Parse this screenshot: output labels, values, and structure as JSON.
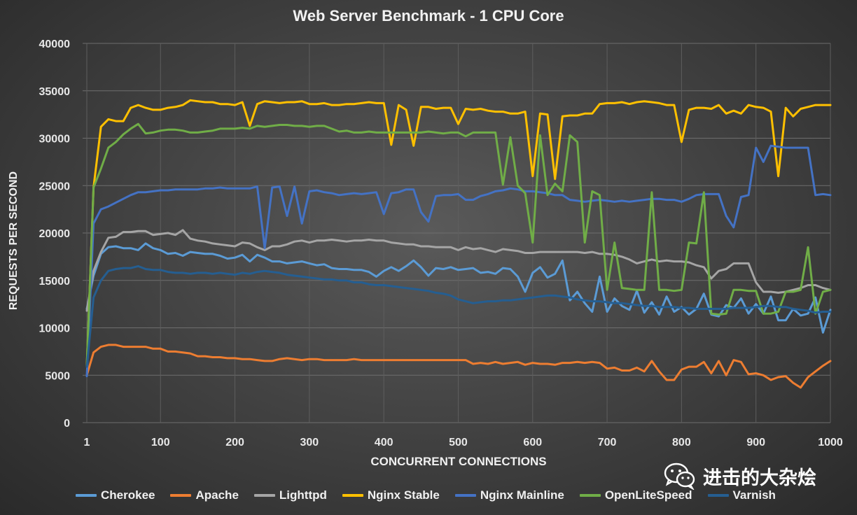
{
  "chart_data": {
    "type": "line",
    "title": "Web Server Benchmark - 1 CPU Core",
    "xlabel": "CONCURRENT CONNECTIONS",
    "ylabel": "REQUESTS PER SECOND",
    "xlim": [
      1,
      1000
    ],
    "ylim": [
      0,
      40000
    ],
    "x_ticks": [
      "1",
      "100",
      "200",
      "300",
      "400",
      "500",
      "600",
      "700",
      "800",
      "900",
      "1000"
    ],
    "y_ticks": [
      "0",
      "5000",
      "10000",
      "15000",
      "20000",
      "25000",
      "30000",
      "35000",
      "40000"
    ],
    "x": [
      1,
      10,
      20,
      30,
      40,
      50,
      60,
      70,
      80,
      90,
      100,
      110,
      120,
      130,
      140,
      150,
      160,
      170,
      180,
      190,
      200,
      210,
      220,
      230,
      240,
      250,
      260,
      270,
      280,
      290,
      300,
      310,
      320,
      330,
      340,
      350,
      360,
      370,
      380,
      390,
      400,
      410,
      420,
      430,
      440,
      450,
      460,
      470,
      480,
      490,
      500,
      510,
      520,
      530,
      540,
      550,
      560,
      570,
      580,
      590,
      600,
      610,
      620,
      630,
      640,
      650,
      660,
      670,
      680,
      690,
      700,
      710,
      720,
      730,
      740,
      750,
      760,
      770,
      780,
      790,
      800,
      810,
      820,
      830,
      840,
      850,
      860,
      870,
      880,
      890,
      900,
      910,
      920,
      930,
      940,
      950,
      960,
      970,
      980,
      990,
      1000
    ],
    "series": [
      {
        "name": "Cherokee",
        "color": "#5b9bd5",
        "values": [
          12000,
          15500,
          17800,
          18500,
          18600,
          18400,
          18400,
          18200,
          18900,
          18400,
          18200,
          17800,
          17900,
          17600,
          18000,
          17900,
          17800,
          17800,
          17600,
          17300,
          17400,
          17700,
          17000,
          17700,
          17400,
          17000,
          17000,
          16800,
          16900,
          17000,
          16800,
          16600,
          16700,
          16300,
          16200,
          16200,
          16100,
          16100,
          15900,
          15400,
          16000,
          16400,
          16000,
          16500,
          17100,
          16400,
          15500,
          16300,
          16200,
          16400,
          16100,
          16200,
          16300,
          15800,
          15900,
          15700,
          16300,
          16200,
          15400,
          13800,
          15800,
          16400,
          15300,
          15700,
          17100,
          12900,
          13800,
          12600,
          11700,
          15400,
          11700,
          13100,
          12300,
          11900,
          13900,
          11600,
          12700,
          11400,
          13300,
          11700,
          12200,
          11400,
          12000,
          13600,
          11400,
          11200,
          12400,
          12100,
          13100,
          11500,
          12500,
          11500,
          13300,
          10800,
          10800,
          12000,
          11300,
          11500,
          13200,
          9500,
          11900
        ]
      },
      {
        "name": "Apache",
        "color": "#ed7d31",
        "values": [
          5000,
          7400,
          8000,
          8200,
          8200,
          8000,
          8000,
          8000,
          8000,
          7800,
          7800,
          7500,
          7500,
          7400,
          7300,
          7000,
          7000,
          6900,
          6900,
          6800,
          6800,
          6700,
          6700,
          6600,
          6500,
          6500,
          6700,
          6800,
          6700,
          6600,
          6700,
          6700,
          6600,
          6600,
          6600,
          6600,
          6700,
          6600,
          6600,
          6600,
          6600,
          6600,
          6600,
          6600,
          6600,
          6600,
          6600,
          6600,
          6600,
          6600,
          6600,
          6600,
          6200,
          6300,
          6200,
          6400,
          6200,
          6300,
          6400,
          6100,
          6300,
          6200,
          6200,
          6100,
          6300,
          6300,
          6400,
          6300,
          6400,
          6300,
          5700,
          5800,
          5500,
          5500,
          5800,
          5400,
          6500,
          5400,
          4500,
          4500,
          5600,
          5900,
          5900,
          6400,
          5200,
          6500,
          5000,
          6600,
          6400,
          5100,
          5200,
          5000,
          4500,
          4800,
          4900,
          4200,
          3700,
          4800,
          5400,
          6000,
          6500
        ]
      },
      {
        "name": "Lighttpd",
        "color": "#a5a5a5",
        "values": [
          11800,
          16000,
          18000,
          19500,
          19600,
          20100,
          20100,
          20200,
          20200,
          19800,
          19900,
          20000,
          19800,
          20300,
          19400,
          19200,
          19100,
          18900,
          18800,
          18700,
          18600,
          19000,
          18900,
          18500,
          18200,
          18600,
          18600,
          18800,
          19100,
          19200,
          19000,
          19200,
          19200,
          19300,
          19200,
          19100,
          19200,
          19200,
          19300,
          19200,
          19200,
          19000,
          18900,
          18800,
          18800,
          18600,
          18600,
          18500,
          18500,
          18500,
          18200,
          18500,
          18300,
          18400,
          18200,
          18000,
          18300,
          18200,
          18100,
          17900,
          17900,
          18000,
          18000,
          18000,
          18000,
          18000,
          18000,
          17900,
          18000,
          17800,
          17800,
          17700,
          17500,
          17200,
          16800,
          17000,
          17200,
          17000,
          17100,
          17000,
          17000,
          16900,
          16600,
          16400,
          15200,
          16000,
          16200,
          16800,
          16800,
          16800,
          14800,
          13800,
          13800,
          13700,
          13800,
          14000,
          14200,
          14500,
          14500,
          14200,
          14000
        ]
      },
      {
        "name": "Nginx Stable",
        "color": "#ffc000",
        "values": [
          6000,
          24800,
          31200,
          32000,
          31800,
          31800,
          33200,
          33500,
          33200,
          33000,
          33000,
          33200,
          33300,
          33500,
          34000,
          33900,
          33800,
          33800,
          33600,
          33600,
          33500,
          33800,
          31300,
          33600,
          33900,
          33800,
          33700,
          33800,
          33800,
          33900,
          33600,
          33600,
          33700,
          33500,
          33500,
          33600,
          33600,
          33700,
          33800,
          33700,
          33700,
          29300,
          33500,
          33000,
          29200,
          33300,
          33300,
          33100,
          33200,
          33200,
          31500,
          33100,
          33000,
          33100,
          32900,
          32800,
          32800,
          32600,
          32600,
          32800,
          26000,
          32600,
          32500,
          25700,
          32300,
          32400,
          32400,
          32600,
          32600,
          33600,
          33700,
          33700,
          33800,
          33600,
          33800,
          33900,
          33800,
          33700,
          33500,
          33500,
          29600,
          33000,
          33200,
          33200,
          33100,
          33500,
          32600,
          32900,
          32600,
          33500,
          33300,
          33200,
          32800,
          26000,
          33200,
          32300,
          33100,
          33300,
          33500,
          33500,
          33500
        ]
      },
      {
        "name": "Nginx Mainline",
        "color": "#4472c4",
        "values": [
          4900,
          21000,
          22500,
          22800,
          23200,
          23600,
          24000,
          24300,
          24300,
          24400,
          24500,
          24500,
          24600,
          24600,
          24600,
          24600,
          24700,
          24700,
          24800,
          24700,
          24700,
          24700,
          24700,
          24900,
          18400,
          24800,
          24900,
          21800,
          24900,
          21000,
          24400,
          24500,
          24300,
          24200,
          24000,
          24100,
          24200,
          24100,
          24200,
          24300,
          22000,
          24200,
          24300,
          24600,
          24600,
          22200,
          21200,
          23900,
          24000,
          24000,
          24100,
          23500,
          23500,
          23900,
          24100,
          24400,
          24500,
          24700,
          24600,
          24400,
          24400,
          24300,
          24200,
          24000,
          24000,
          23500,
          23400,
          23300,
          23400,
          23500,
          23400,
          23300,
          23400,
          23300,
          23400,
          23500,
          23600,
          23600,
          23500,
          23500,
          23300,
          23600,
          24000,
          24100,
          24100,
          24100,
          21800,
          20600,
          23800,
          24000,
          29000,
          27500,
          29200,
          29100,
          29000,
          29000,
          29000,
          29000,
          24000,
          24100,
          24000
        ]
      },
      {
        "name": "OpenLiteSpeed",
        "color": "#70ad47",
        "values": [
          6000,
          24800,
          26800,
          29000,
          29600,
          30400,
          31000,
          31500,
          30500,
          30600,
          30800,
          30900,
          30900,
          30800,
          30600,
          30600,
          30700,
          30800,
          31000,
          31000,
          31000,
          31100,
          31000,
          31300,
          31200,
          31300,
          31400,
          31400,
          31300,
          31300,
          31200,
          31300,
          31300,
          31000,
          30700,
          30800,
          30600,
          30600,
          30700,
          30600,
          30600,
          30600,
          30600,
          30600,
          30600,
          30600,
          30700,
          30600,
          30500,
          30600,
          30600,
          30200,
          30600,
          30600,
          30600,
          30600,
          25100,
          30100,
          25000,
          24200,
          19000,
          30300,
          24000,
          25200,
          24400,
          30300,
          29600,
          19000,
          24400,
          24000,
          14000,
          19000,
          14200,
          14100,
          14000,
          14000,
          24300,
          14000,
          14000,
          13900,
          14000,
          19000,
          18900,
          24300,
          11500,
          11400,
          11500,
          14000,
          14000,
          13900,
          13900,
          11500,
          11500,
          11700,
          13800,
          13800,
          14000,
          18500,
          11500,
          13800,
          14000
        ]
      },
      {
        "name": "Varnish",
        "color": "#255e91",
        "values": [
          5900,
          13200,
          15000,
          16000,
          16200,
          16300,
          16300,
          16500,
          16200,
          16100,
          16100,
          15900,
          15800,
          15800,
          15700,
          15800,
          15800,
          15700,
          15800,
          15700,
          15600,
          15800,
          15700,
          15900,
          16000,
          15900,
          15800,
          15600,
          15500,
          15400,
          15300,
          15200,
          15100,
          15100,
          15000,
          15000,
          14800,
          14800,
          14600,
          14500,
          14500,
          14400,
          14300,
          14200,
          14100,
          14000,
          13900,
          13700,
          13600,
          13400,
          13000,
          12800,
          12600,
          12700,
          12800,
          12800,
          12900,
          12900,
          13000,
          13100,
          13200,
          13300,
          13400,
          13400,
          13300,
          13200,
          13000,
          12900,
          12800,
          12800,
          12700,
          12600,
          12600,
          12500,
          12400,
          12300,
          12300,
          12200,
          12200,
          12200,
          12100,
          12100,
          12000,
          12000,
          12000,
          12000,
          12000,
          12100,
          12100,
          12100,
          12200,
          12300,
          12300,
          12200,
          12200,
          12000,
          11900,
          11800,
          11600,
          11700,
          11700
        ]
      }
    ]
  },
  "watermark": {
    "text": "进击的大杂烩"
  }
}
